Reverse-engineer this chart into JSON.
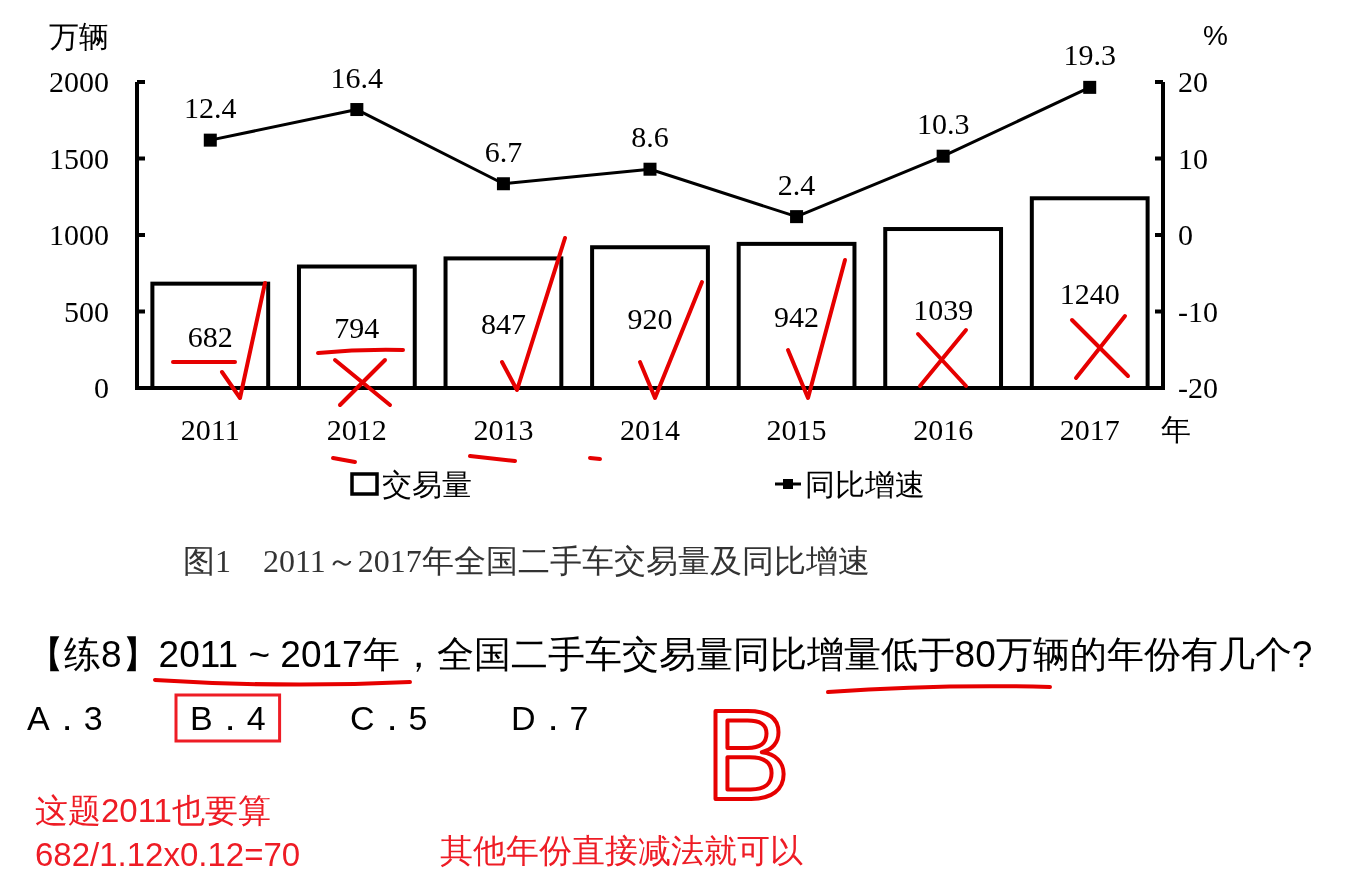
{
  "chart_data": {
    "type": "bar",
    "title": "图1　2011～2017年全国二手车交易量及同比增速",
    "xlabel": "年",
    "ylabel": "万辆",
    "y2label": "%",
    "categories": [
      "2011",
      "2012",
      "2013",
      "2014",
      "2015",
      "2016",
      "2017"
    ],
    "series": [
      {
        "name": "交易量",
        "color": "#ffffff",
        "values": [
          682,
          794,
          847,
          920,
          942,
          1039,
          1240
        ]
      },
      {
        "name": "同比增速",
        "type": "line",
        "axis": "y2",
        "color": "#000000",
        "marker": "square",
        "values": [
          12.4,
          16.4,
          6.7,
          8.6,
          2.4,
          10.3,
          19.3
        ]
      }
    ],
    "ylim": [
      0,
      2000
    ],
    "yticks": [
      0,
      500,
      1000,
      1500,
      2000
    ],
    "y2lim": [
      -20,
      20
    ],
    "y2ticks": [
      -20,
      -10,
      0,
      10,
      20
    ],
    "data_labels": true,
    "legend": "bottom",
    "annotations": [
      "【练8】2011 ~ 2017年，全国二手车交易量同比增量低于80万辆的年份有几个?",
      "A．3",
      "B．4",
      "C．5",
      "D．7",
      "这题2011也要算",
      "682/1.12x0.12=70",
      "其他年份直接减法就可以",
      "B"
    ]
  }
}
